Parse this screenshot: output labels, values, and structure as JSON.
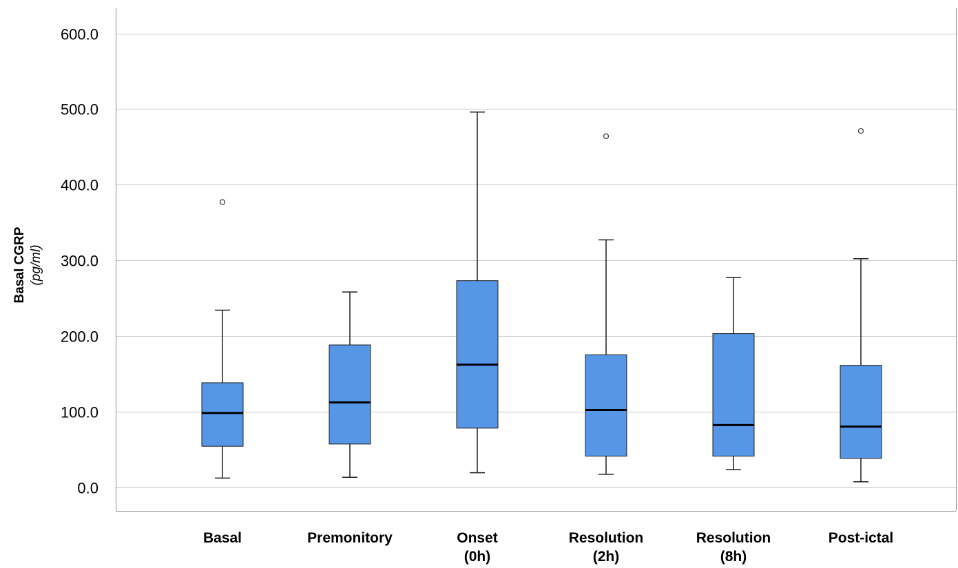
{
  "chart_data": {
    "type": "box",
    "ylabel": "Basal CGRP",
    "ylabel_unit": "(pg/ml)",
    "ylim": [
      -30,
      640
    ],
    "yticks": [
      "0.0",
      "100.0",
      "200.0",
      "300.0",
      "400.0",
      "500.0",
      "600.0"
    ],
    "ytick_values": [
      0,
      100,
      200,
      300,
      400,
      500,
      600
    ],
    "grid": true,
    "box_color": "#5596e6",
    "box_edge_color": "#1f1f1f",
    "grid_color": "#c8c8c8",
    "categories": [
      {
        "lines": [
          "Basal"
        ]
      },
      {
        "lines": [
          "Premonitory"
        ]
      },
      {
        "lines": [
          "Onset",
          "(0h)"
        ]
      },
      {
        "lines": [
          "Resolution",
          "(2h)"
        ]
      },
      {
        "lines": [
          "Resolution",
          "(8h)"
        ]
      },
      {
        "lines": [
          "Post-ictal"
        ]
      }
    ],
    "boxes": [
      {
        "whisker_low": 12,
        "q1": 54,
        "median": 98,
        "q3": 138,
        "whisker_high": 234,
        "outliers": [
          377
        ]
      },
      {
        "whisker_low": 13,
        "q1": 57,
        "median": 112,
        "q3": 188,
        "whisker_high": 258,
        "outliers": []
      },
      {
        "whisker_low": 19,
        "q1": 78,
        "median": 162,
        "q3": 273,
        "whisker_high": 496,
        "outliers": []
      },
      {
        "whisker_low": 17,
        "q1": 41,
        "median": 102,
        "q3": 175,
        "whisker_high": 327,
        "outliers": [
          464
        ]
      },
      {
        "whisker_low": 23,
        "q1": 41,
        "median": 82,
        "q3": 203,
        "whisker_high": 277,
        "outliers": []
      },
      {
        "whisker_low": 7,
        "q1": 38,
        "median": 80,
        "q3": 161,
        "whisker_high": 302,
        "outliers": [
          471
        ]
      }
    ]
  }
}
